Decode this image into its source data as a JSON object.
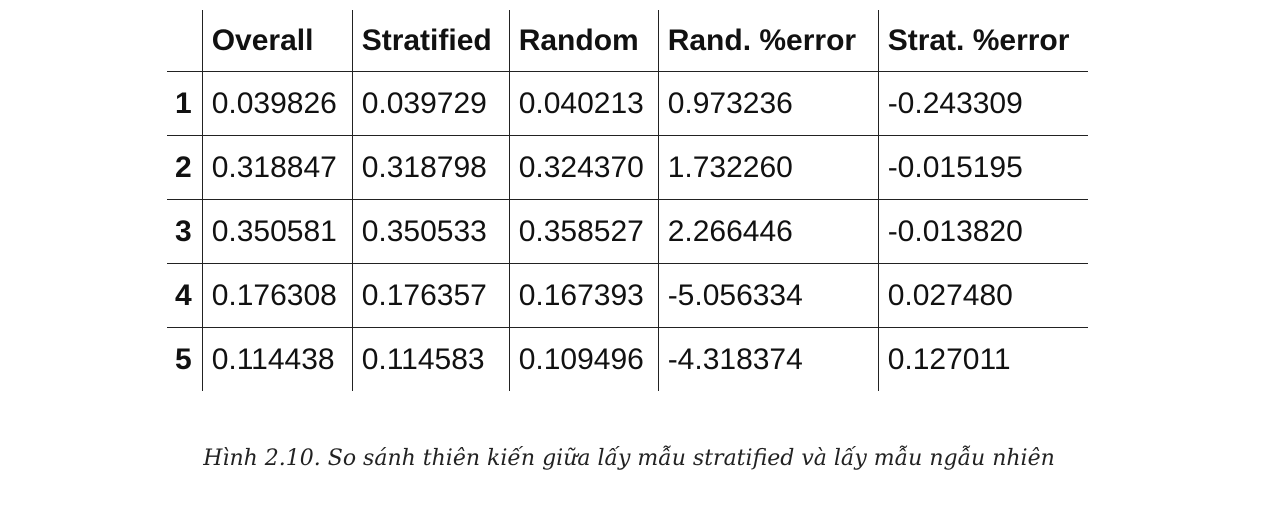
{
  "table": {
    "headers": [
      "",
      "Overall",
      "Stratified",
      "Random",
      "Rand. %error",
      "Strat. %error"
    ],
    "rows": [
      {
        "index": "1",
        "cells": [
          "0.039826",
          "0.039729",
          "0.040213",
          "0.973236",
          "-0.243309"
        ]
      },
      {
        "index": "2",
        "cells": [
          "0.318847",
          "0.318798",
          "0.324370",
          "1.732260",
          "-0.015195"
        ]
      },
      {
        "index": "3",
        "cells": [
          "0.350581",
          "0.350533",
          "0.358527",
          "2.266446",
          "-0.013820"
        ]
      },
      {
        "index": "4",
        "cells": [
          "0.176308",
          "0.176357",
          "0.167393",
          "-5.056334",
          "0.027480"
        ]
      },
      {
        "index": "5",
        "cells": [
          "0.114438",
          "0.114583",
          "0.109496",
          "-4.318374",
          "0.127011"
        ]
      }
    ]
  },
  "caption": "Hình 2.10. So sánh thiên kiến giữa lấy mẫu stratified và lấy mẫu ngẫu nhiên"
}
